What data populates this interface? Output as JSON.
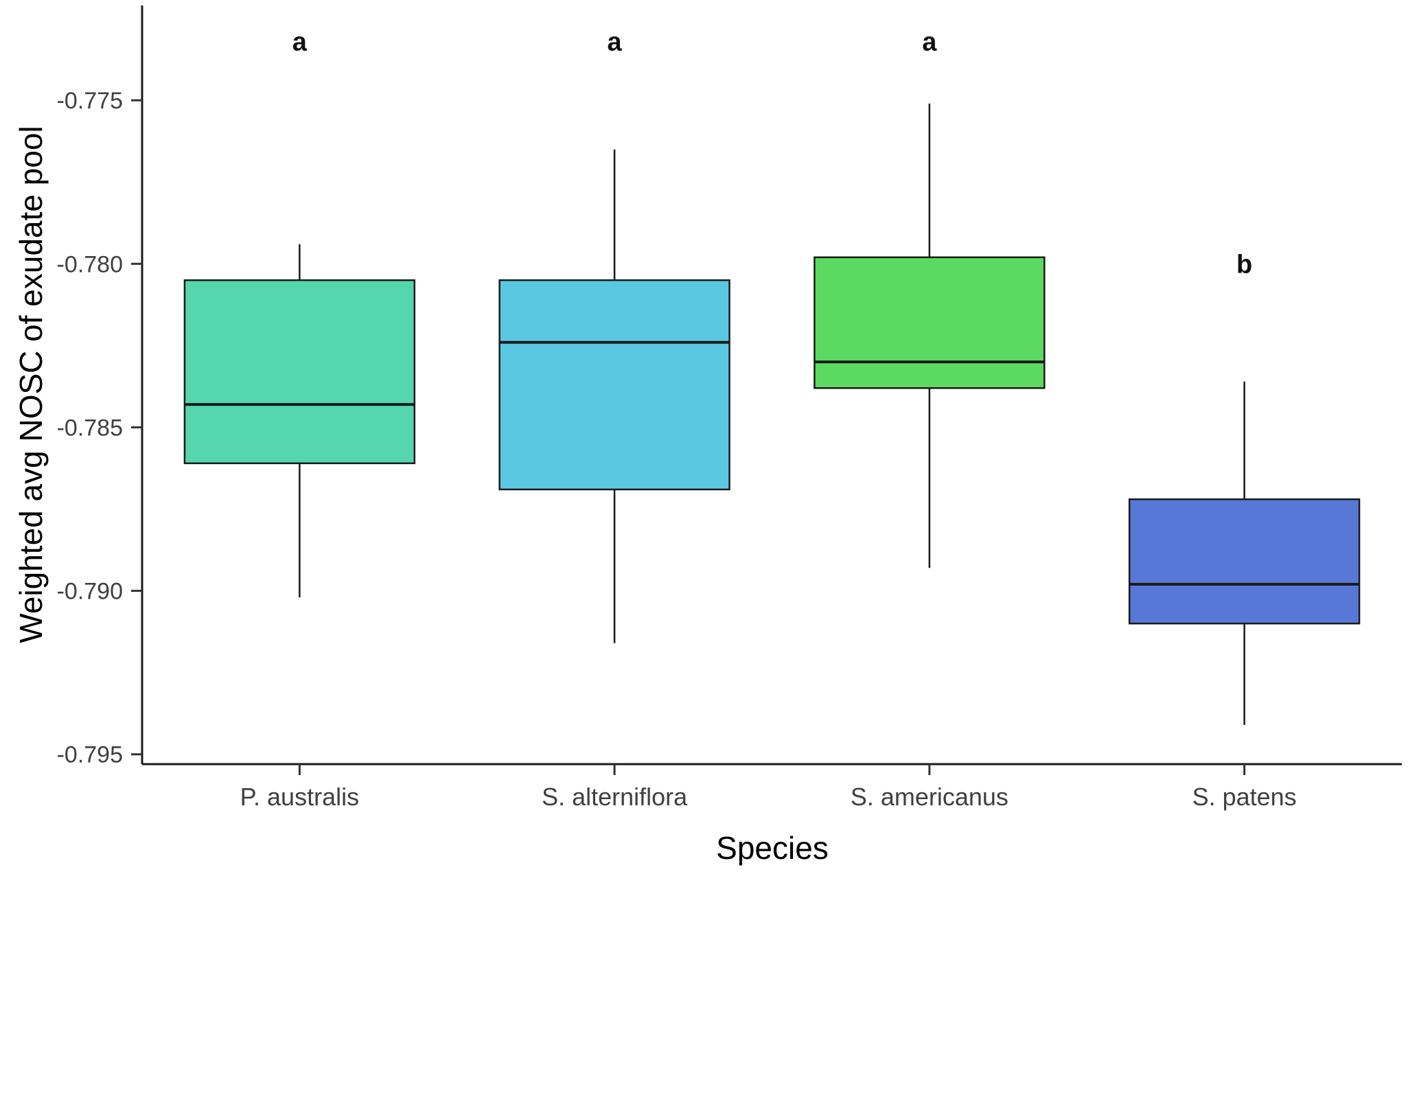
{
  "figure": {
    "background": "#ffffff",
    "axis_color": "#1a1a1a",
    "tick_color": "#333333",
    "tick_label_color": "#404040",
    "letter_color": "#111111"
  },
  "chart_data": {
    "type": "boxplot",
    "title": "",
    "xlabel": "Species",
    "ylabel": "Weighted avg NOSC of exudate pool",
    "ylim": [
      -0.7953,
      -0.7721
    ],
    "grid": "off",
    "legend": "none",
    "yticks": [
      {
        "value": -0.775,
        "label": "-0.775"
      },
      {
        "value": -0.78,
        "label": "-0.780"
      },
      {
        "value": -0.785,
        "label": "-0.785"
      },
      {
        "value": -0.79,
        "label": "-0.790"
      },
      {
        "value": -0.795,
        "label": "-0.795"
      }
    ],
    "boxes": [
      {
        "category": "P. australis",
        "letter": "a",
        "letter_value": -0.7732,
        "color": "#55D6AC",
        "whisker_high": -0.7794,
        "q3": -0.7805,
        "median": -0.7843,
        "q1": -0.7861,
        "whisker_low": -0.7902
      },
      {
        "category": "S. alterniflora",
        "letter": "a",
        "letter_value": -0.7732,
        "color": "#5BC8E2",
        "whisker_high": -0.7765,
        "q3": -0.7805,
        "median": -0.7824,
        "q1": -0.7869,
        "whisker_low": -0.7916
      },
      {
        "category": "S. americanus",
        "letter": "a",
        "letter_value": -0.7732,
        "color": "#5CD960",
        "whisker_high": -0.7751,
        "q3": -0.7798,
        "median": -0.783,
        "q1": -0.7838,
        "whisker_low": -0.7893
      },
      {
        "category": "S. patens",
        "letter": "b",
        "letter_value": -0.78,
        "color": "#5878D8",
        "whisker_high": -0.7836,
        "q3": -0.7872,
        "median": -0.7898,
        "q1": -0.791,
        "whisker_low": -0.7941
      }
    ]
  }
}
